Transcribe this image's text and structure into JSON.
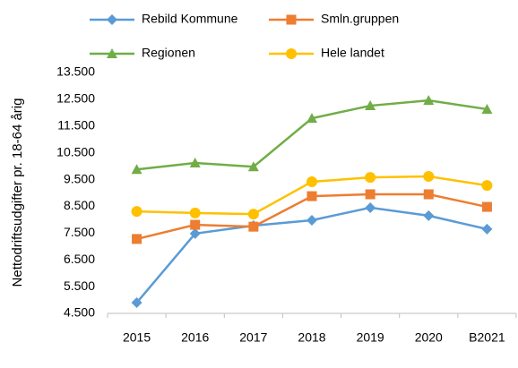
{
  "chart_data": {
    "type": "line",
    "y_label": "Nettodriftsudgifter pr. 18-64 årig",
    "categories": [
      "2015",
      "2016",
      "2017",
      "2018",
      "2019",
      "2020",
      "B2021"
    ],
    "series": [
      {
        "name": "Rebild Kommune",
        "color": "#5b9bd5",
        "marker": "diamond",
        "values": [
          4900,
          7480,
          7780,
          7980,
          8450,
          8150,
          7650
        ]
      },
      {
        "name": "Smln.gruppen",
        "color": "#ed7d31",
        "marker": "square",
        "values": [
          7280,
          7810,
          7740,
          8880,
          8950,
          8950,
          8480
        ]
      },
      {
        "name": "Regionen",
        "color": "#70ad47",
        "marker": "triangle",
        "values": [
          9880,
          10120,
          9980,
          11790,
          12260,
          12460,
          12130
        ]
      },
      {
        "name": "Hele landet",
        "color": "#ffc000",
        "marker": "circle",
        "values": [
          8310,
          8250,
          8210,
          9420,
          9580,
          9620,
          9280
        ]
      }
    ],
    "ylim": [
      4500,
      13500
    ],
    "yticks": [
      {
        "value": 4500,
        "label": "4.500"
      },
      {
        "value": 5500,
        "label": "5.500"
      },
      {
        "value": 6500,
        "label": "6.500"
      },
      {
        "value": 7500,
        "label": "7.500"
      },
      {
        "value": 8500,
        "label": "8.500"
      },
      {
        "value": 9500,
        "label": "9.500"
      },
      {
        "value": 10500,
        "label": "10.500"
      },
      {
        "value": 11500,
        "label": "11.500"
      },
      {
        "value": 12500,
        "label": "12.500"
      },
      {
        "value": 13500,
        "label": "13.500"
      }
    ],
    "grid": false,
    "legend": "top"
  }
}
